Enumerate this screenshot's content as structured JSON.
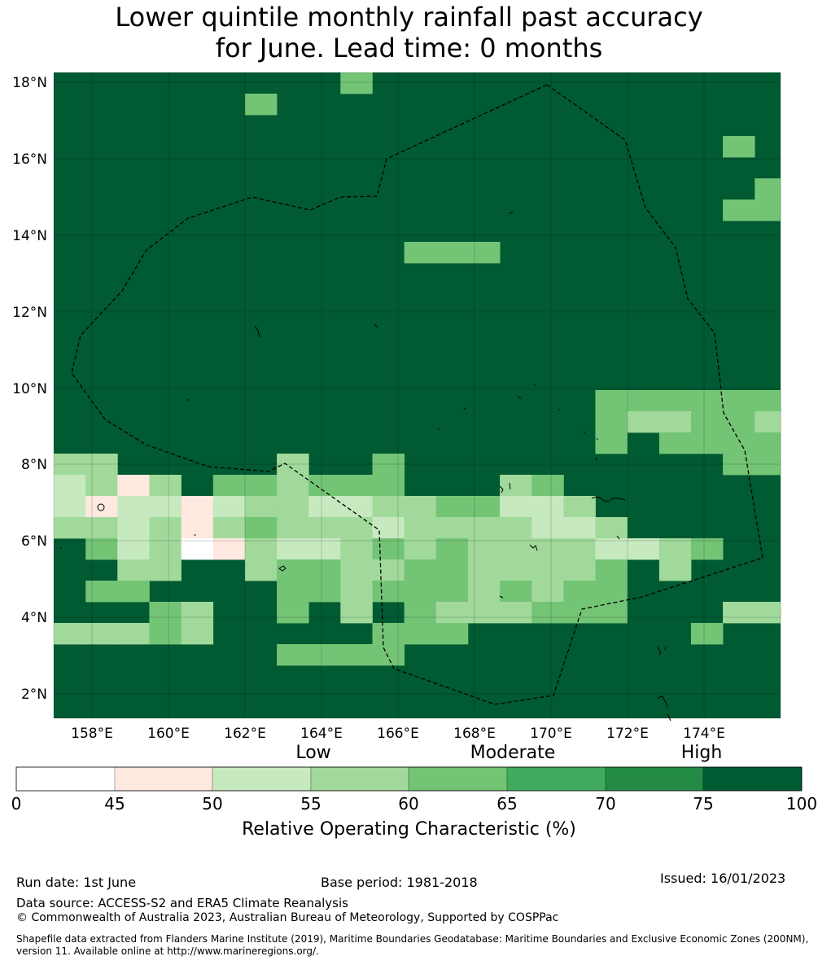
{
  "title_line1": "Lower quintile monthly rainfall past accuracy",
  "title_line2": "for June. Lead time: 0 months",
  "map": {
    "lat_labels": [
      "18°N",
      "16°N",
      "14°N",
      "12°N",
      "10°N",
      "8°N",
      "6°N",
      "4°N",
      "2°N"
    ],
    "lon_labels": [
      "158°E",
      "160°E",
      "162°E",
      "164°E",
      "166°E",
      "168°E",
      "170°E",
      "172°E",
      "174°E"
    ],
    "base_class": 7,
    "cells": [
      [
        9,
        0,
        4
      ],
      [
        6,
        1,
        4
      ],
      [
        21,
        3,
        4
      ],
      [
        23,
        3,
        4
      ],
      [
        23,
        4,
        4
      ],
      [
        22,
        5,
        4
      ],
      [
        23,
        5,
        4
      ],
      [
        21,
        6,
        4
      ],
      [
        22,
        6,
        4
      ],
      [
        11,
        8,
        4
      ],
      [
        12,
        8,
        4
      ],
      [
        13,
        8,
        4
      ],
      [
        17,
        15,
        4
      ],
      [
        18,
        15,
        4
      ],
      [
        19,
        15,
        4
      ],
      [
        20,
        15,
        4
      ],
      [
        21,
        15,
        4
      ],
      [
        22,
        15,
        4
      ],
      [
        17,
        16,
        4
      ],
      [
        18,
        16,
        3
      ],
      [
        19,
        16,
        3
      ],
      [
        20,
        16,
        4
      ],
      [
        21,
        16,
        4
      ],
      [
        22,
        16,
        3
      ],
      [
        17,
        17,
        4
      ],
      [
        19,
        17,
        4
      ],
      [
        20,
        17,
        4
      ],
      [
        21,
        17,
        4
      ],
      [
        22,
        17,
        4
      ],
      [
        0,
        18,
        3
      ],
      [
        1,
        18,
        3
      ],
      [
        7,
        18,
        3
      ],
      [
        10,
        18,
        4
      ],
      [
        21,
        18,
        4
      ],
      [
        22,
        18,
        4
      ],
      [
        0,
        19,
        2
      ],
      [
        1,
        19,
        3
      ],
      [
        2,
        19,
        1
      ],
      [
        3,
        19,
        3
      ],
      [
        5,
        19,
        4
      ],
      [
        6,
        19,
        4
      ],
      [
        7,
        19,
        3
      ],
      [
        8,
        19,
        4
      ],
      [
        9,
        19,
        4
      ],
      [
        10,
        19,
        4
      ],
      [
        14,
        19,
        3
      ],
      [
        15,
        19,
        4
      ],
      [
        0,
        20,
        2
      ],
      [
        1,
        20,
        1
      ],
      [
        2,
        20,
        2
      ],
      [
        3,
        20,
        2
      ],
      [
        4,
        20,
        1
      ],
      [
        5,
        20,
        2
      ],
      [
        6,
        20,
        3
      ],
      [
        7,
        20,
        3
      ],
      [
        8,
        20,
        2
      ],
      [
        9,
        20,
        2
      ],
      [
        10,
        20,
        3
      ],
      [
        11,
        20,
        3
      ],
      [
        12,
        20,
        4
      ],
      [
        13,
        20,
        4
      ],
      [
        14,
        20,
        2
      ],
      [
        15,
        20,
        2
      ],
      [
        16,
        20,
        3
      ],
      [
        0,
        21,
        3
      ],
      [
        1,
        21,
        3
      ],
      [
        2,
        21,
        2
      ],
      [
        3,
        21,
        3
      ],
      [
        4,
        21,
        1
      ],
      [
        5,
        21,
        3
      ],
      [
        6,
        21,
        4
      ],
      [
        7,
        21,
        3
      ],
      [
        8,
        21,
        3
      ],
      [
        9,
        21,
        3
      ],
      [
        10,
        21,
        2
      ],
      [
        11,
        21,
        3
      ],
      [
        12,
        21,
        3
      ],
      [
        13,
        21,
        3
      ],
      [
        14,
        21,
        3
      ],
      [
        15,
        21,
        2
      ],
      [
        16,
        21,
        2
      ],
      [
        17,
        21,
        3
      ],
      [
        1,
        22,
        4
      ],
      [
        2,
        22,
        2
      ],
      [
        3,
        22,
        3
      ],
      [
        4,
        22,
        0
      ],
      [
        5,
        22,
        1
      ],
      [
        6,
        22,
        3
      ],
      [
        7,
        22,
        2
      ],
      [
        8,
        22,
        2
      ],
      [
        9,
        22,
        3
      ],
      [
        10,
        22,
        4
      ],
      [
        11,
        22,
        3
      ],
      [
        12,
        22,
        4
      ],
      [
        13,
        22,
        3
      ],
      [
        14,
        22,
        3
      ],
      [
        15,
        22,
        3
      ],
      [
        16,
        22,
        3
      ],
      [
        17,
        22,
        2
      ],
      [
        18,
        22,
        2
      ],
      [
        19,
        22,
        3
      ],
      [
        20,
        22,
        4
      ],
      [
        2,
        23,
        3
      ],
      [
        3,
        23,
        3
      ],
      [
        6,
        23,
        3
      ],
      [
        7,
        23,
        4
      ],
      [
        8,
        23,
        4
      ],
      [
        9,
        23,
        3
      ],
      [
        10,
        23,
        3
      ],
      [
        11,
        23,
        4
      ],
      [
        12,
        23,
        4
      ],
      [
        13,
        23,
        3
      ],
      [
        14,
        23,
        3
      ],
      [
        15,
        23,
        3
      ],
      [
        16,
        23,
        3
      ],
      [
        17,
        23,
        4
      ],
      [
        19,
        23,
        3
      ],
      [
        1,
        24,
        4
      ],
      [
        2,
        24,
        4
      ],
      [
        7,
        24,
        4
      ],
      [
        8,
        24,
        4
      ],
      [
        9,
        24,
        3
      ],
      [
        10,
        24,
        4
      ],
      [
        11,
        24,
        4
      ],
      [
        12,
        24,
        4
      ],
      [
        13,
        24,
        3
      ],
      [
        14,
        24,
        4
      ],
      [
        15,
        24,
        3
      ],
      [
        16,
        24,
        4
      ],
      [
        17,
        24,
        4
      ],
      [
        3,
        25,
        4
      ],
      [
        4,
        25,
        3
      ],
      [
        7,
        25,
        4
      ],
      [
        9,
        25,
        3
      ],
      [
        11,
        25,
        4
      ],
      [
        12,
        25,
        3
      ],
      [
        13,
        25,
        3
      ],
      [
        14,
        25,
        3
      ],
      [
        15,
        25,
        4
      ],
      [
        16,
        25,
        4
      ],
      [
        17,
        25,
        4
      ],
      [
        21,
        25,
        3
      ],
      [
        22,
        25,
        3
      ],
      [
        0,
        26,
        3
      ],
      [
        1,
        26,
        3
      ],
      [
        2,
        26,
        3
      ],
      [
        3,
        26,
        4
      ],
      [
        4,
        26,
        3
      ],
      [
        10,
        26,
        4
      ],
      [
        11,
        26,
        4
      ],
      [
        12,
        26,
        4
      ],
      [
        20,
        26,
        4
      ],
      [
        7,
        27,
        4
      ],
      [
        8,
        27,
        4
      ],
      [
        9,
        27,
        4
      ],
      [
        10,
        27,
        4
      ]
    ]
  },
  "colorbar": {
    "categories": [
      "Low",
      "Moderate",
      "High"
    ],
    "ticks": [
      "0",
      "45",
      "50",
      "55",
      "60",
      "65",
      "70",
      "75",
      "100"
    ],
    "colors": [
      "#ffffff",
      "#fee8df",
      "#c7e9c0",
      "#a1d99b",
      "#74c476",
      "#41ab5d",
      "#238b45",
      "#005a32"
    ],
    "label": "Relative Operating Characteristic (%)"
  },
  "footer": {
    "run_date": "Run date: 1st June",
    "base_period": "Base period: 1981-2018",
    "issued": "Issued: 16/01/2023",
    "data_source": "Data source: ACCESS-S2 and ERA5 Climate Reanalysis",
    "copyright": "© Commonwealth of Australia 2023, Australian Bureau of Meteorology, Supported by COSPPac",
    "shapefile_line1": "Shapefile data extracted from Flanders Marine Institute (2019), Maritime Boundaries Geodatabase: Maritime Boundaries and Exclusive Economic Zones (200NM),",
    "shapefile_line2": "version 11. Available online at http://www.marineregions.org/."
  }
}
